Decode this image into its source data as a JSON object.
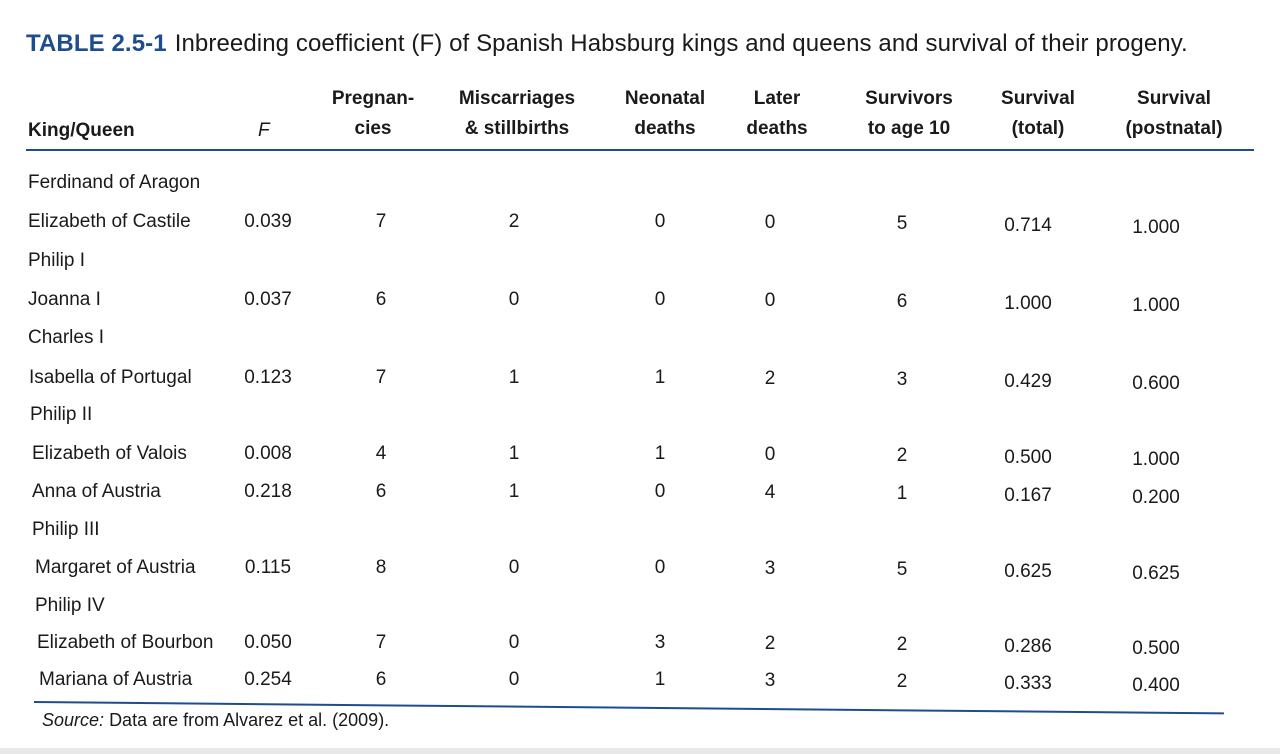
{
  "title": {
    "label": "TABLE 2.5-1",
    "text": "Inbreeding coefficient (F) of Spanish Habsburg kings and queens and survival of their progeny."
  },
  "headers": {
    "king_queen": "King/Queen",
    "f": "F",
    "pregnancies_1": "Pregnan-",
    "pregnancies_2": "cies",
    "miscarriages_1": "Miscarriages",
    "miscarriages_2": "& stillbirths",
    "neonatal_1": "Neonatal",
    "neonatal_2": "deaths",
    "later_1": "Later",
    "later_2": "deaths",
    "survivors_1": "Survivors",
    "survivors_2": "to age 10",
    "survival_total_1": "Survival",
    "survival_total_2": "(total)",
    "survival_postnatal_1": "Survival",
    "survival_postnatal_2": "(postnatal)"
  },
  "rows": [
    {
      "name": "Ferdinand of Aragon"
    },
    {
      "name": "Elizabeth of Castile",
      "f": "0.039",
      "pregnancies": "7",
      "miscarriages": "2",
      "neonatal": "0",
      "later": "0",
      "survivors": "5",
      "survival_total": "0.714",
      "survival_postnatal": "1.000"
    },
    {
      "name": "Philip I"
    },
    {
      "name": "Joanna I",
      "f": "0.037",
      "pregnancies": "6",
      "miscarriages": "0",
      "neonatal": "0",
      "later": "0",
      "survivors": "6",
      "survival_total": "1.000",
      "survival_postnatal": "1.000"
    },
    {
      "name": "Charles I"
    },
    {
      "name": "Isabella of Portugal",
      "f": "0.123",
      "pregnancies": "7",
      "miscarriages": "1",
      "neonatal": "1",
      "later": "2",
      "survivors": "3",
      "survival_total": "0.429",
      "survival_postnatal": "0.600"
    },
    {
      "name": "Philip II"
    },
    {
      "name": "Elizabeth of Valois",
      "f": "0.008",
      "pregnancies": "4",
      "miscarriages": "1",
      "neonatal": "1",
      "later": "0",
      "survivors": "2",
      "survival_total": "0.500",
      "survival_postnatal": "1.000"
    },
    {
      "name": "Anna of Austria",
      "f": "0.218",
      "pregnancies": "6",
      "miscarriages": "1",
      "neonatal": "0",
      "later": "4",
      "survivors": "1",
      "survival_total": "0.167",
      "survival_postnatal": "0.200"
    },
    {
      "name": "Philip III"
    },
    {
      "name": "Margaret of Austria",
      "f": "0.115",
      "pregnancies": "8",
      "miscarriages": "0",
      "neonatal": "0",
      "later": "3",
      "survivors": "5",
      "survival_total": "0.625",
      "survival_postnatal": "0.625"
    },
    {
      "name": "Philip IV"
    },
    {
      "name": "Elizabeth of Bourbon",
      "f": "0.050",
      "pregnancies": "7",
      "miscarriages": "0",
      "neonatal": "3",
      "later": "2",
      "survivors": "2",
      "survival_total": "0.286",
      "survival_postnatal": "0.500"
    },
    {
      "name": "Mariana of Austria",
      "f": "0.254",
      "pregnancies": "6",
      "miscarriages": "0",
      "neonatal": "1",
      "later": "3",
      "survivors": "2",
      "survival_total": "0.333",
      "survival_postnatal": "0.400"
    }
  ],
  "source": {
    "label": "Source:",
    "text": "Data are from Alvarez et al. (2009)."
  }
}
